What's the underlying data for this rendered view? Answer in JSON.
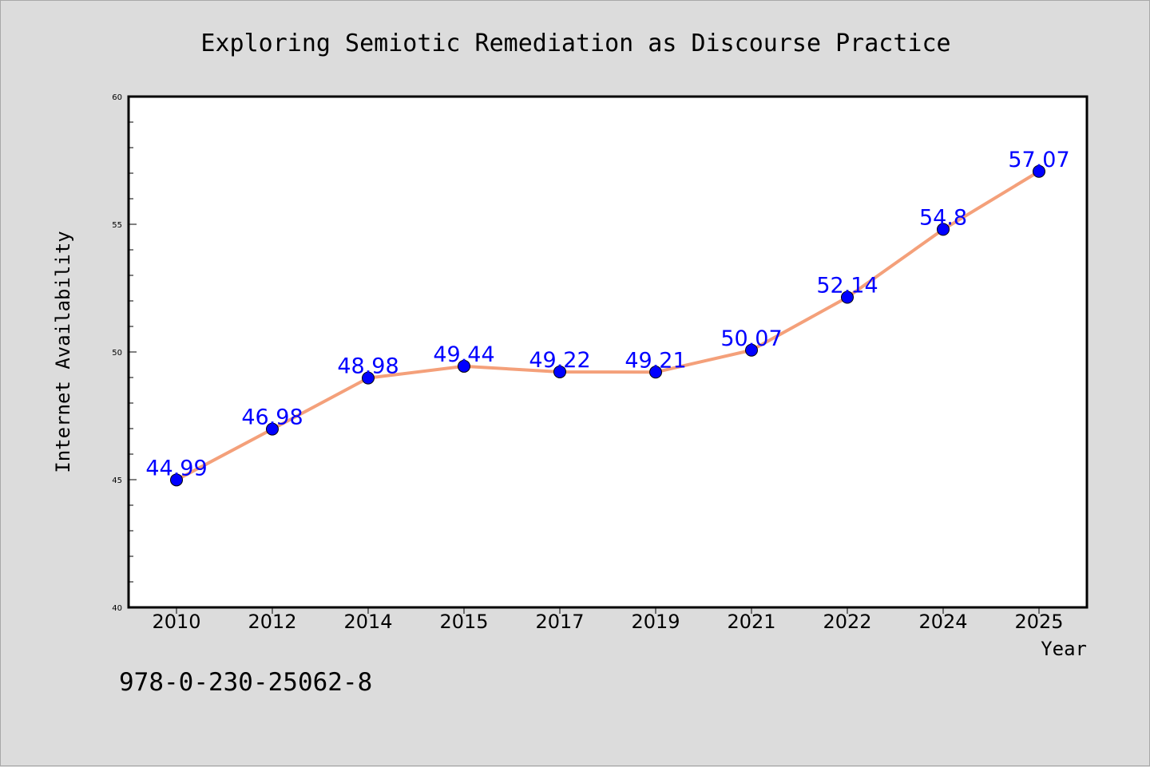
{
  "chart_data": {
    "type": "line",
    "title": "Exploring Semiotic Remediation as Discourse Practice",
    "xlabel": "Year",
    "ylabel": "Internet Availability",
    "categories": [
      "2010",
      "2012",
      "2014",
      "2015",
      "2017",
      "2019",
      "2021",
      "2022",
      "2024",
      "2025"
    ],
    "series": [
      {
        "values": [
          44.99,
          46.98,
          48.98,
          49.44,
          49.22,
          49.21,
          50.07,
          52.14,
          54.8,
          57.07
        ],
        "data_labels": [
          "44.99",
          "46.98",
          "48.98",
          "49.44",
          "49.22",
          "49.21",
          "50.07",
          "52.14",
          "54.8",
          "57.07"
        ],
        "line_color": "#f4a07a",
        "marker_color": "#0000ff"
      }
    ],
    "ylim": [
      40,
      60
    ],
    "yticks": [
      40,
      45,
      50,
      55,
      60
    ],
    "grid": false,
    "legend": "none"
  },
  "annotation": {
    "isbn": "978-0-230-25062-8"
  },
  "colors": {
    "background": "#dcdcdc",
    "plot_background": "#ffffff",
    "line": "#f4a07a",
    "marker": "#0000ff",
    "data_label": "#0000ff"
  }
}
